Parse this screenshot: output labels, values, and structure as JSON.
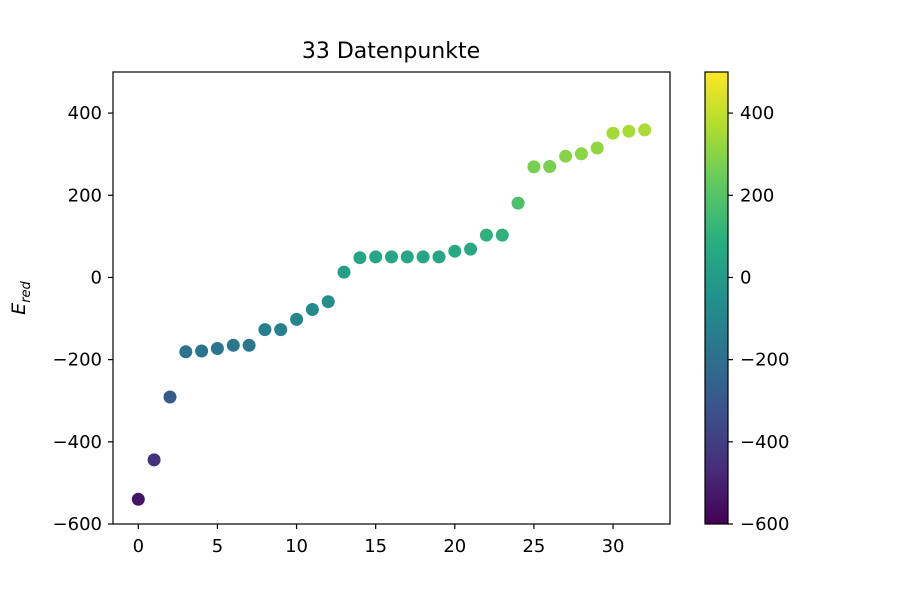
{
  "chart_data": {
    "type": "scatter",
    "title": "33 Datenpunkte",
    "xlabel": "",
    "ylabel": "E",
    "ylabel_subscript": "red",
    "xlim": [
      -1.6,
      33.6
    ],
    "ylim": [
      -600,
      500
    ],
    "x_ticks": [
      0,
      5,
      10,
      15,
      20,
      25,
      30
    ],
    "x_tick_labels": [
      "0",
      "5",
      "10",
      "15",
      "20",
      "25",
      "30"
    ],
    "y_ticks": [
      -600,
      -400,
      -200,
      0,
      200,
      400
    ],
    "y_tick_labels": [
      "−600",
      "−400",
      "−200",
      "0",
      "200",
      "400"
    ],
    "grid": false,
    "colorbar": {
      "colormap": "viridis",
      "range": [
        -600,
        500
      ],
      "ticks": [
        -600,
        -400,
        -200,
        0,
        200,
        400
      ],
      "tick_labels": [
        "−600",
        "−400",
        "−200",
        "0",
        "200",
        "400"
      ]
    },
    "series": [
      {
        "x": [
          0,
          1,
          2,
          3,
          4,
          5,
          6,
          7,
          8,
          9,
          10,
          11,
          12,
          13,
          14,
          15,
          16,
          17,
          18,
          19,
          20,
          21,
          22,
          23,
          24,
          25,
          26,
          27,
          28,
          29,
          30,
          31,
          32
        ],
        "y": [
          -540,
          -444,
          -291,
          -181,
          -179,
          -173,
          -165,
          -165,
          -127,
          -127,
          -102,
          -78,
          -59,
          13,
          48,
          50,
          50,
          50,
          50,
          50,
          64,
          69,
          103,
          103,
          181,
          269,
          270,
          295,
          301,
          315,
          351,
          356,
          359
        ]
      }
    ]
  }
}
